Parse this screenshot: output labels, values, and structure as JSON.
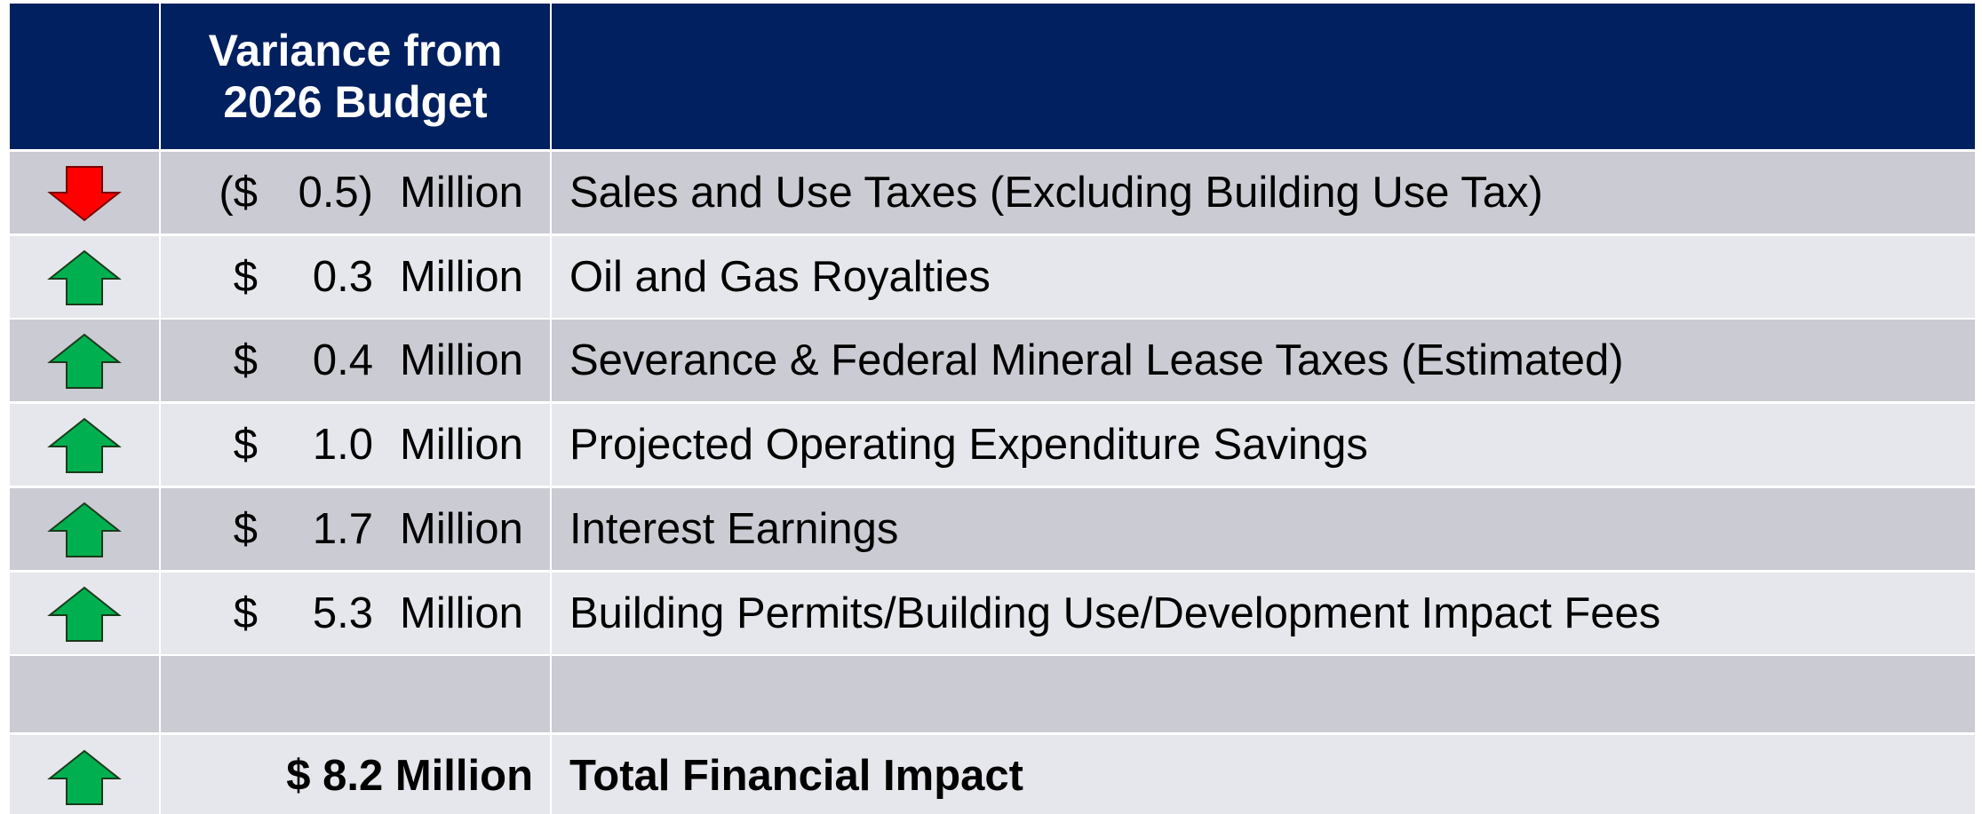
{
  "header": {
    "title": "Variance from 2026 Budget"
  },
  "rows": [
    {
      "trend": "down",
      "sign": "($",
      "amount": "0.5)",
      "unit": "Million",
      "label": "Sales and Use Taxes (Excluding Building Use Tax)"
    },
    {
      "trend": "up",
      "sign": "$",
      "amount": "0.3",
      "unit": "Million",
      "label": "Oil and Gas Royalties"
    },
    {
      "trend": "up",
      "sign": "$",
      "amount": "0.4",
      "unit": "Million",
      "label": "Severance & Federal Mineral Lease Taxes (Estimated)"
    },
    {
      "trend": "up",
      "sign": "$",
      "amount": "1.0",
      "unit": "Million",
      "label": "Projected Operating Expenditure Savings"
    },
    {
      "trend": "up",
      "sign": "$",
      "amount": "1.7",
      "unit": "Million",
      "label": "Interest Earnings"
    },
    {
      "trend": "up",
      "sign": "$",
      "amount": "5.3",
      "unit": "Million",
      "label": "Building Permits/Building Use/Development Impact Fees"
    }
  ],
  "total": {
    "trend": "up",
    "amount": "$ 8.2 Million",
    "label": "Total Financial Impact"
  }
}
